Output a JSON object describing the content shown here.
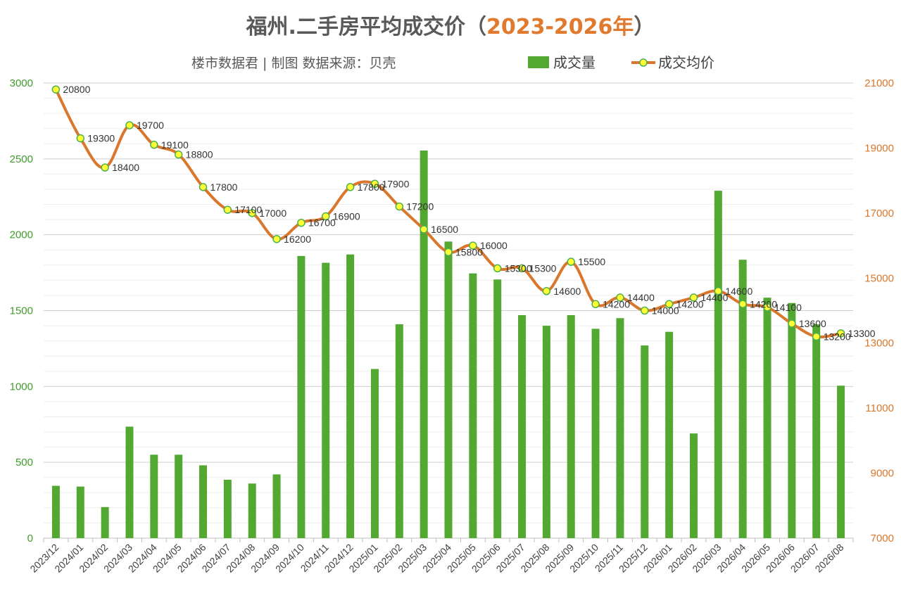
{
  "chart_data": {
    "type": "bar+line",
    "title": "福州.二手房平均成交价（",
    "title_accent": "2023-2026年",
    "title_end": "）",
    "subtitle": "楼市数据君 | 制图   数据来源：贝壳",
    "categories": [
      "2023/12",
      "2024/01",
      "2024/02",
      "2024/03",
      "2024/04",
      "2024/05",
      "2024/06",
      "2024/07",
      "2024/08",
      "2024/09",
      "2024/10",
      "2024/11",
      "2024/12",
      "2025/01",
      "2025/02",
      "2025/03",
      "2025/04",
      "2025/05",
      "2025/06",
      "2025/07",
      "2025/08",
      "2025/09",
      "2025/10",
      "2025/11",
      "2025/12",
      "2026/01",
      "2026/02",
      "2026/03",
      "2026/04",
      "2026/05",
      "2026/06",
      "2026/07",
      "2026/08"
    ],
    "series": [
      {
        "name": "成交量",
        "type": "bar",
        "axis": "left",
        "color": "#52A830",
        "values": [
          345,
          340,
          205,
          735,
          550,
          550,
          480,
          385,
          360,
          420,
          1860,
          1815,
          1870,
          1115,
          1410,
          2555,
          1955,
          1745,
          1705,
          1470,
          1400,
          1470,
          1380,
          1450,
          1270,
          1360,
          690,
          2290,
          1835,
          1585,
          1550,
          1410,
          1005
        ]
      },
      {
        "name": "成交均价",
        "type": "line",
        "axis": "right",
        "color": "#D9772C",
        "marker_fill": "#FFFF33",
        "marker_stroke": "#4CAF50",
        "values": [
          20800,
          19300,
          18400,
          19700,
          19100,
          18800,
          17800,
          17100,
          17000,
          16200,
          16700,
          16900,
          17800,
          17900,
          17200,
          16500,
          15800,
          16000,
          15300,
          15300,
          14600,
          15500,
          14200,
          14400,
          14000,
          14200,
          14400,
          14600,
          14200,
          14100,
          13600,
          13200,
          13300
        ],
        "labels": [
          "20800",
          "19300",
          "18400",
          "19700",
          "19100",
          "18800",
          "17800",
          "17100",
          "17000",
          "16200",
          "16700",
          "16900",
          "17800",
          "17900",
          "17200",
          "16500",
          "15800",
          "16000",
          "15300",
          "15300",
          "14600",
          "15500",
          "14200",
          "14400",
          "14000",
          "14200",
          "14400",
          "14600",
          "14200",
          "14100",
          "13600",
          "13200",
          "13300"
        ]
      }
    ],
    "y_left": {
      "min": 0,
      "max": 3000,
      "ticks": [
        "0",
        "500",
        "1000",
        "1500",
        "2000",
        "2500",
        "3000"
      ],
      "color": "#3F9B2A"
    },
    "y_right": {
      "min": 7000,
      "max": 21000,
      "ticks": [
        "7000",
        "9000",
        "11000",
        "13000",
        "15000",
        "17000",
        "19000",
        "21000"
      ],
      "color": "#D9772C"
    },
    "grid": true,
    "legend_position": "top-right"
  }
}
